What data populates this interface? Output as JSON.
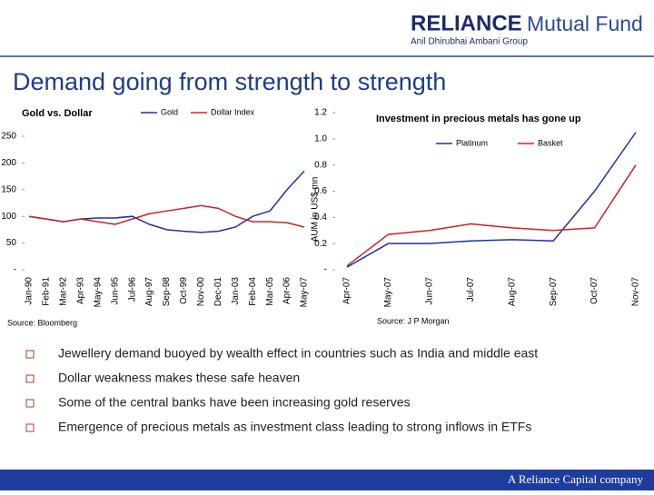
{
  "header": {
    "brand": "RELIANCE",
    "brand_suffix": "Mutual Fund",
    "group": "Anil Dhirubhai Ambani Group"
  },
  "title": "Demand going from strength to strength",
  "chart_data": [
    {
      "type": "line",
      "title": "Gold vs. Dollar",
      "categories": [
        "Jan-90",
        "Feb-91",
        "Mar-92",
        "Apr-93",
        "May-94",
        "Jun-95",
        "Jul-96",
        "Aug-97",
        "Sep-98",
        "Oct-99",
        "Nov-00",
        "Dec-01",
        "Jan-03",
        "Feb-04",
        "Mar-05",
        "Apr-06",
        "May-07"
      ],
      "series": [
        {
          "name": "Gold",
          "color": "#1f2fa8",
          "values": [
            100,
            95,
            90,
            95,
            97,
            97,
            100,
            85,
            75,
            72,
            70,
            72,
            80,
            100,
            110,
            150,
            185
          ]
        },
        {
          "name": "Dollar Index",
          "color": "#d02020",
          "values": [
            100,
            95,
            90,
            95,
            90,
            85,
            95,
            105,
            110,
            115,
            120,
            115,
            100,
            90,
            90,
            88,
            80
          ]
        }
      ],
      "ylim": [
        0,
        250
      ],
      "yticks": [
        {
          "value": 0,
          "label": "-"
        },
        50,
        100,
        150,
        200,
        250
      ],
      "source": "Source: Bloomberg"
    },
    {
      "type": "line",
      "title": "Investment in precious metals has gone up",
      "y_label": "AUM in US$ mn",
      "categories": [
        "Apr-07",
        "May-07",
        "Jun-07",
        "Jul-07",
        "Aug-07",
        "Sep-07",
        "Oct-07",
        "Nov-07"
      ],
      "series": [
        {
          "name": "Platinum",
          "color": "#1f2fa8",
          "values": [
            0.02,
            0.2,
            0.2,
            0.22,
            0.23,
            0.22,
            0.6,
            1.05
          ]
        },
        {
          "name": "Basket",
          "color": "#d02020",
          "values": [
            0.03,
            0.27,
            0.3,
            0.35,
            0.32,
            0.3,
            0.32,
            0.8
          ]
        }
      ],
      "ylim": [
        0,
        1.2
      ],
      "yticks": [
        {
          "value": 0,
          "label": "-"
        },
        0.2,
        0.4,
        0.6,
        0.8,
        {
          "value": 1,
          "label": "1.0"
        },
        1.2
      ],
      "source": "Source: J P Morgan"
    }
  ],
  "bullets": [
    "Jewellery demand buoyed by wealth effect in countries such as India and middle east",
    "Dollar weakness makes these safe heaven",
    "Some of the central banks have been increasing gold reserves",
    "Emergence of precious metals as investment class leading to strong inflows in ETFs"
  ],
  "footer": "A Reliance Capital company"
}
